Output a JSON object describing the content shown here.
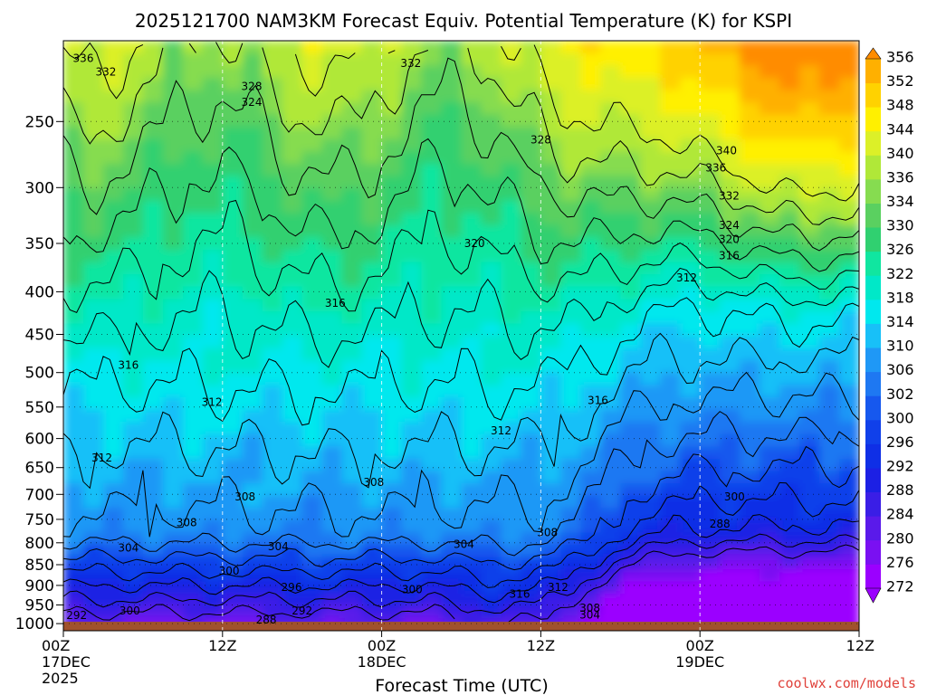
{
  "chart_data": {
    "type": "heatmap",
    "title": "2025121700 NAM3KM Forecast Equiv. Potential Temperature (K) for KSPI",
    "xlabel": "Forecast Time (UTC)",
    "ylabel": "",
    "watermark": "coolwx.com/models",
    "x_ticks": [
      {
        "hour": 0,
        "line1": "00Z",
        "line2": "17DEC",
        "line3": "2025"
      },
      {
        "hour": 12,
        "line1": "12Z",
        "line2": "",
        "line3": ""
      },
      {
        "hour": 24,
        "line1": "00Z",
        "line2": "18DEC",
        "line3": ""
      },
      {
        "hour": 36,
        "line1": "12Z",
        "line2": "",
        "line3": ""
      },
      {
        "hour": 48,
        "line1": "00Z",
        "line2": "19DEC",
        "line3": ""
      },
      {
        "hour": 60,
        "line1": "12Z",
        "line2": "",
        "line3": ""
      }
    ],
    "xlim": [
      0,
      60
    ],
    "y_ticks": [
      {
        "value": 250,
        "label": "250"
      },
      {
        "value": 300,
        "label": "300"
      },
      {
        "value": 350,
        "label": "350"
      },
      {
        "value": 400,
        "label": "400"
      },
      {
        "value": 450,
        "label": "450"
      },
      {
        "value": 500,
        "label": "500"
      },
      {
        "value": 550,
        "label": "550"
      },
      {
        "value": 600,
        "label": "600"
      },
      {
        "value": 650,
        "label": "650"
      },
      {
        "value": 700,
        "label": "700"
      },
      {
        "value": 750,
        "label": "750"
      },
      {
        "value": 800,
        "label": "800"
      },
      {
        "value": 850,
        "label": "850"
      },
      {
        "value": 900,
        "label": "900"
      },
      {
        "value": 950,
        "label": "950"
      },
      {
        "value": 1000,
        "label": "1000"
      }
    ],
    "ylim": [
      200,
      1020
    ],
    "y_scale": "log-pressure (inverted)",
    "grid": true,
    "surface_pressure": 995,
    "colorbar": {
      "levels": [
        272,
        276,
        280,
        284,
        288,
        292,
        296,
        300,
        302,
        306,
        310,
        314,
        318,
        322,
        326,
        330,
        334,
        336,
        340,
        344,
        348,
        352,
        356
      ],
      "labels": [
        "272",
        "276",
        "280",
        "284",
        "288",
        "292",
        "296",
        "300",
        "302",
        "306",
        "310",
        "314",
        "318",
        "322",
        "326",
        "330",
        "334",
        "336",
        "340",
        "344",
        "348",
        "352",
        "356"
      ],
      "colors": [
        "#9b00ff",
        "#7a10f2",
        "#5a1aea",
        "#3a1ee6",
        "#1c20e4",
        "#0f2fe6",
        "#1040ea",
        "#1658ee",
        "#1e78f2",
        "#1f98f6",
        "#18c0f8",
        "#00e8ee",
        "#00e8c8",
        "#10e6a0",
        "#30d070",
        "#5ad060",
        "#86dc50",
        "#b0e838",
        "#dcf028",
        "#fff000",
        "#ffd200",
        "#ffb000",
        "#ff8c00"
      ]
    },
    "contour_labels": [
      {
        "text": "336",
        "t": 1.5,
        "p": 210
      },
      {
        "text": "332",
        "t": 3.2,
        "p": 218
      },
      {
        "text": "332",
        "t": 26.2,
        "p": 213
      },
      {
        "text": "328",
        "t": 14.2,
        "p": 227
      },
      {
        "text": "324",
        "t": 14.2,
        "p": 237
      },
      {
        "text": "328",
        "t": 36,
        "p": 263
      },
      {
        "text": "340",
        "t": 50,
        "p": 271
      },
      {
        "text": "336",
        "t": 49.2,
        "p": 284
      },
      {
        "text": "332",
        "t": 50.2,
        "p": 307
      },
      {
        "text": "324",
        "t": 50.2,
        "p": 333
      },
      {
        "text": "320",
        "t": 50.2,
        "p": 346
      },
      {
        "text": "316",
        "t": 50.2,
        "p": 362
      },
      {
        "text": "312",
        "t": 47,
        "p": 385
      },
      {
        "text": "320",
        "t": 31,
        "p": 350
      },
      {
        "text": "316",
        "t": 20.5,
        "p": 413
      },
      {
        "text": "316",
        "t": 4.9,
        "p": 490
      },
      {
        "text": "316",
        "t": 40.3,
        "p": 540
      },
      {
        "text": "312",
        "t": 11.2,
        "p": 543
      },
      {
        "text": "312",
        "t": 33,
        "p": 587
      },
      {
        "text": "312",
        "t": 2.9,
        "p": 633
      },
      {
        "text": "308",
        "t": 23.4,
        "p": 677
      },
      {
        "text": "308",
        "t": 13.7,
        "p": 705
      },
      {
        "text": "300",
        "t": 50.6,
        "p": 705
      },
      {
        "text": "308",
        "t": 9.3,
        "p": 757
      },
      {
        "text": "288",
        "t": 49.5,
        "p": 760
      },
      {
        "text": "308",
        "t": 36.5,
        "p": 778
      },
      {
        "text": "304",
        "t": 4.9,
        "p": 812
      },
      {
        "text": "304",
        "t": 16.2,
        "p": 808
      },
      {
        "text": "304",
        "t": 30.2,
        "p": 803
      },
      {
        "text": "300",
        "t": 12.5,
        "p": 865
      },
      {
        "text": "296",
        "t": 17.2,
        "p": 905
      },
      {
        "text": "300",
        "t": 26.3,
        "p": 910
      },
      {
        "text": "316",
        "t": 34.4,
        "p": 922
      },
      {
        "text": "312",
        "t": 37.3,
        "p": 905
      },
      {
        "text": "308",
        "t": 39.7,
        "p": 958
      },
      {
        "text": "304",
        "t": 39.7,
        "p": 976
      },
      {
        "text": "300",
        "t": 5,
        "p": 965
      },
      {
        "text": "292",
        "t": 18,
        "p": 965
      },
      {
        "text": "292",
        "t": 1,
        "p": 977
      },
      {
        "text": "288",
        "t": 15.3,
        "p": 990
      }
    ]
  }
}
